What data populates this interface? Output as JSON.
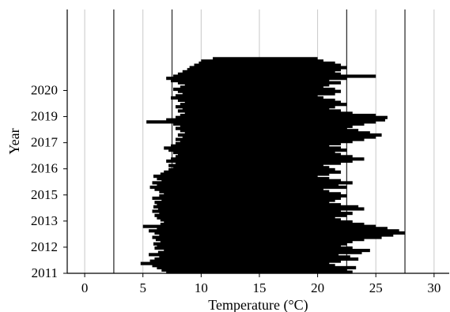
{
  "chart_data": {
    "type": "bar",
    "orientation": "horizontal",
    "title": "",
    "xlabel": "Temperature (°C)",
    "ylabel": "Year",
    "xlim": [
      -1.5,
      31.3
    ],
    "ylim": [
      2011.0,
      2021.1
    ],
    "x_ticks": [
      0,
      5,
      10,
      15,
      20,
      25,
      30
    ],
    "y_ticks": [
      {
        "label": "2011",
        "value": 2011.0
      },
      {
        "label": "2012",
        "value": 2012.0
      },
      {
        "label": "2013",
        "value": 2013.0
      },
      {
        "label": "2015",
        "value": 2014.0
      },
      {
        "label": "2016",
        "value": 2015.0
      },
      {
        "label": "2017",
        "value": 2016.0
      },
      {
        "label": "2019",
        "value": 2017.0
      },
      {
        "label": "2020",
        "value": 2018.0
      }
    ],
    "reference_lines": [
      2.5,
      7.5,
      22.5,
      27.5
    ],
    "grid": "vertical",
    "bar_color": "#000000",
    "series": [
      {
        "values_note_omitted": true,
        "segments": [
          [
            2011.0,
            7.0,
            23.0
          ],
          [
            2011.08,
            6.6,
            22.5
          ],
          [
            2011.17,
            6.2,
            23.3
          ],
          [
            2011.25,
            5.8,
            21.5
          ],
          [
            2011.33,
            4.8,
            21.0
          ],
          [
            2011.42,
            5.6,
            22.0
          ],
          [
            2011.5,
            6.0,
            23.5
          ],
          [
            2011.58,
            6.4,
            22.8
          ],
          [
            2011.67,
            5.5,
            21.8
          ],
          [
            2011.75,
            6.3,
            23.8
          ],
          [
            2011.83,
            6.8,
            24.5
          ],
          [
            2011.92,
            6.0,
            23.0
          ],
          [
            2012.0,
            6.2,
            22.0
          ],
          [
            2012.08,
            5.9,
            22.5
          ],
          [
            2012.17,
            6.5,
            23.0
          ],
          [
            2012.25,
            6.1,
            24.0
          ],
          [
            2012.33,
            5.8,
            25.5
          ],
          [
            2012.42,
            6.4,
            26.5
          ],
          [
            2012.5,
            6.0,
            27.5
          ],
          [
            2012.58,
            5.5,
            27.0
          ],
          [
            2012.67,
            6.2,
            26.0
          ],
          [
            2012.75,
            5.0,
            25.0
          ],
          [
            2012.83,
            6.5,
            24.0
          ],
          [
            2012.92,
            6.8,
            23.0
          ],
          [
            2013.0,
            6.5,
            22.0
          ],
          [
            2013.08,
            6.2,
            21.5
          ],
          [
            2013.17,
            6.0,
            22.5
          ],
          [
            2013.25,
            6.4,
            23.0
          ],
          [
            2013.33,
            5.8,
            22.0
          ],
          [
            2013.42,
            6.3,
            24.0
          ],
          [
            2013.5,
            5.9,
            23.5
          ],
          [
            2013.58,
            6.2,
            22.0
          ],
          [
            2013.67,
            6.0,
            21.0
          ],
          [
            2013.75,
            6.6,
            21.5
          ],
          [
            2013.83,
            5.8,
            22.0
          ],
          [
            2013.92,
            6.4,
            22.5
          ],
          [
            2014.0,
            6.8,
            22.0
          ],
          [
            2014.08,
            6.4,
            21.0
          ],
          [
            2014.17,
            6.0,
            20.5
          ],
          [
            2014.25,
            5.6,
            22.5
          ],
          [
            2014.33,
            6.2,
            21.8
          ],
          [
            2014.42,
            5.8,
            23.0
          ],
          [
            2014.5,
            6.6,
            22.0
          ],
          [
            2014.58,
            6.2,
            21.0
          ],
          [
            2014.67,
            5.9,
            20.0
          ],
          [
            2014.75,
            6.5,
            21.0
          ],
          [
            2014.83,
            6.8,
            22.0
          ],
          [
            2014.92,
            7.2,
            21.5
          ],
          [
            2015.0,
            7.6,
            21.0
          ],
          [
            2015.08,
            7.2,
            20.5
          ],
          [
            2015.17,
            7.8,
            22.0
          ],
          [
            2015.25,
            7.0,
            23.0
          ],
          [
            2015.33,
            7.4,
            24.0
          ],
          [
            2015.42,
            7.8,
            23.0
          ],
          [
            2015.5,
            8.0,
            22.0
          ],
          [
            2015.58,
            7.6,
            21.5
          ],
          [
            2015.67,
            7.2,
            22.5
          ],
          [
            2015.75,
            6.8,
            22.0
          ],
          [
            2015.83,
            7.4,
            21.0
          ],
          [
            2015.92,
            7.8,
            22.0
          ],
          [
            2016.0,
            8.2,
            23.0
          ],
          [
            2016.08,
            7.8,
            24.0
          ],
          [
            2016.17,
            8.4,
            25.0
          ],
          [
            2016.25,
            8.0,
            25.5
          ],
          [
            2016.33,
            8.6,
            24.5
          ],
          [
            2016.42,
            8.2,
            23.5
          ],
          [
            2016.5,
            7.8,
            22.5
          ],
          [
            2016.58,
            8.2,
            23.0
          ],
          [
            2016.67,
            7.6,
            24.0
          ],
          [
            2016.75,
            5.3,
            25.0
          ],
          [
            2016.83,
            7.0,
            25.8
          ],
          [
            2016.92,
            7.8,
            26.0
          ],
          [
            2017.0,
            8.2,
            25.0
          ],
          [
            2017.08,
            8.6,
            23.0
          ],
          [
            2017.17,
            8.0,
            22.0
          ],
          [
            2017.25,
            8.4,
            21.0
          ],
          [
            2017.33,
            7.8,
            21.5
          ],
          [
            2017.42,
            8.2,
            22.5
          ],
          [
            2017.5,
            8.6,
            22.0
          ],
          [
            2017.58,
            8.0,
            21.5
          ],
          [
            2017.67,
            7.4,
            20.5
          ],
          [
            2017.75,
            7.8,
            20.0
          ],
          [
            2017.83,
            8.4,
            21.5
          ],
          [
            2017.92,
            8.0,
            22.0
          ],
          [
            2018.0,
            7.6,
            21.5
          ],
          [
            2018.08,
            8.2,
            20.5
          ],
          [
            2018.17,
            8.6,
            21.0
          ],
          [
            2018.25,
            8.0,
            22.0
          ],
          [
            2018.33,
            7.4,
            21.0
          ],
          [
            2018.42,
            7.0,
            22.5
          ],
          [
            2018.5,
            7.6,
            25.0
          ],
          [
            2018.58,
            8.0,
            22.0
          ],
          [
            2018.67,
            8.4,
            21.5
          ],
          [
            2018.75,
            8.8,
            22.0
          ],
          [
            2018.83,
            9.0,
            22.5
          ],
          [
            2018.92,
            9.4,
            22.0
          ],
          [
            2019.0,
            9.8,
            21.5
          ],
          [
            2019.08,
            10.0,
            20.5
          ],
          [
            2019.17,
            11.0,
            20.0
          ]
        ]
      }
    ]
  }
}
